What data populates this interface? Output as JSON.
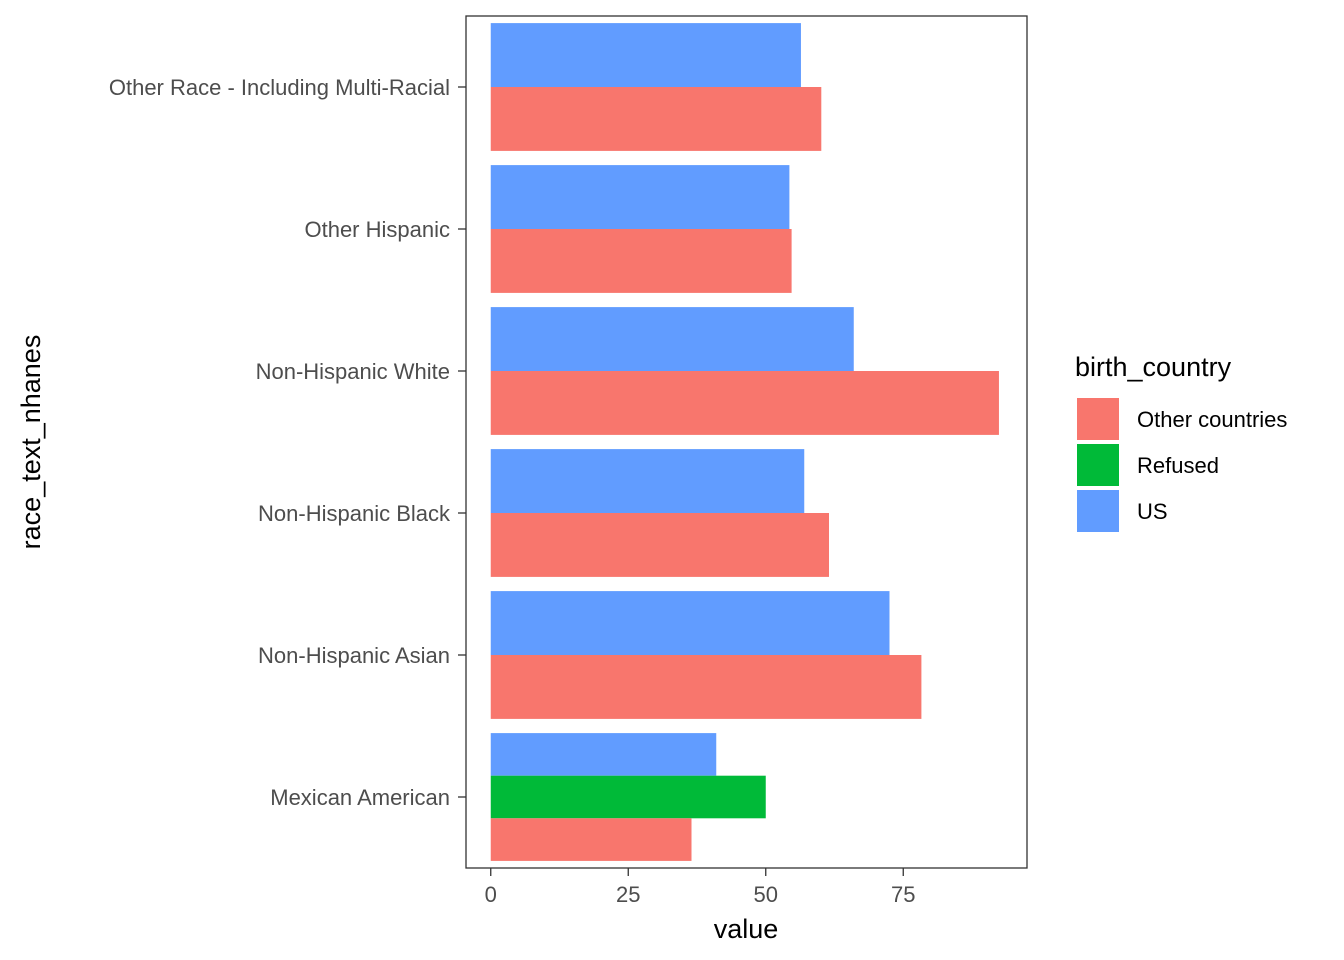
{
  "chart_data": {
    "type": "bar",
    "orientation": "horizontal",
    "xlabel": "value",
    "ylabel": "race_text_nhanes",
    "xlim": [
      -4.5,
      97.5
    ],
    "x_ticks": [
      0,
      25,
      50,
      75
    ],
    "grid": false,
    "legend_position": "right",
    "legend": {
      "title": "birth_country",
      "entries": [
        {
          "name": "Other countries",
          "color": "#F8766D"
        },
        {
          "name": "Refused",
          "color": "#00BA38"
        },
        {
          "name": "US",
          "color": "#619CFF"
        }
      ]
    },
    "categories": [
      {
        "label": "Mexican American",
        "bars": [
          {
            "series": "US",
            "value": 41
          },
          {
            "series": "Refused",
            "value": 50
          },
          {
            "series": "Other countries",
            "value": 36.5
          }
        ]
      },
      {
        "label": "Non-Hispanic Asian",
        "bars": [
          {
            "series": "US",
            "value": 72.5
          },
          {
            "series": "Other countries",
            "value": 78.3
          }
        ]
      },
      {
        "label": "Non-Hispanic Black",
        "bars": [
          {
            "series": "US",
            "value": 57
          },
          {
            "series": "Other countries",
            "value": 61.5
          }
        ]
      },
      {
        "label": "Non-Hispanic White",
        "bars": [
          {
            "series": "US",
            "value": 66
          },
          {
            "series": "Other countries",
            "value": 92.4
          }
        ]
      },
      {
        "label": "Other Hispanic",
        "bars": [
          {
            "series": "US",
            "value": 54.3
          },
          {
            "series": "Other countries",
            "value": 54.7
          }
        ]
      },
      {
        "label": "Other Race - Including Multi-Racial",
        "bars": [
          {
            "series": "US",
            "value": 56.4
          },
          {
            "series": "Other countries",
            "value": 60.1
          }
        ]
      }
    ]
  }
}
